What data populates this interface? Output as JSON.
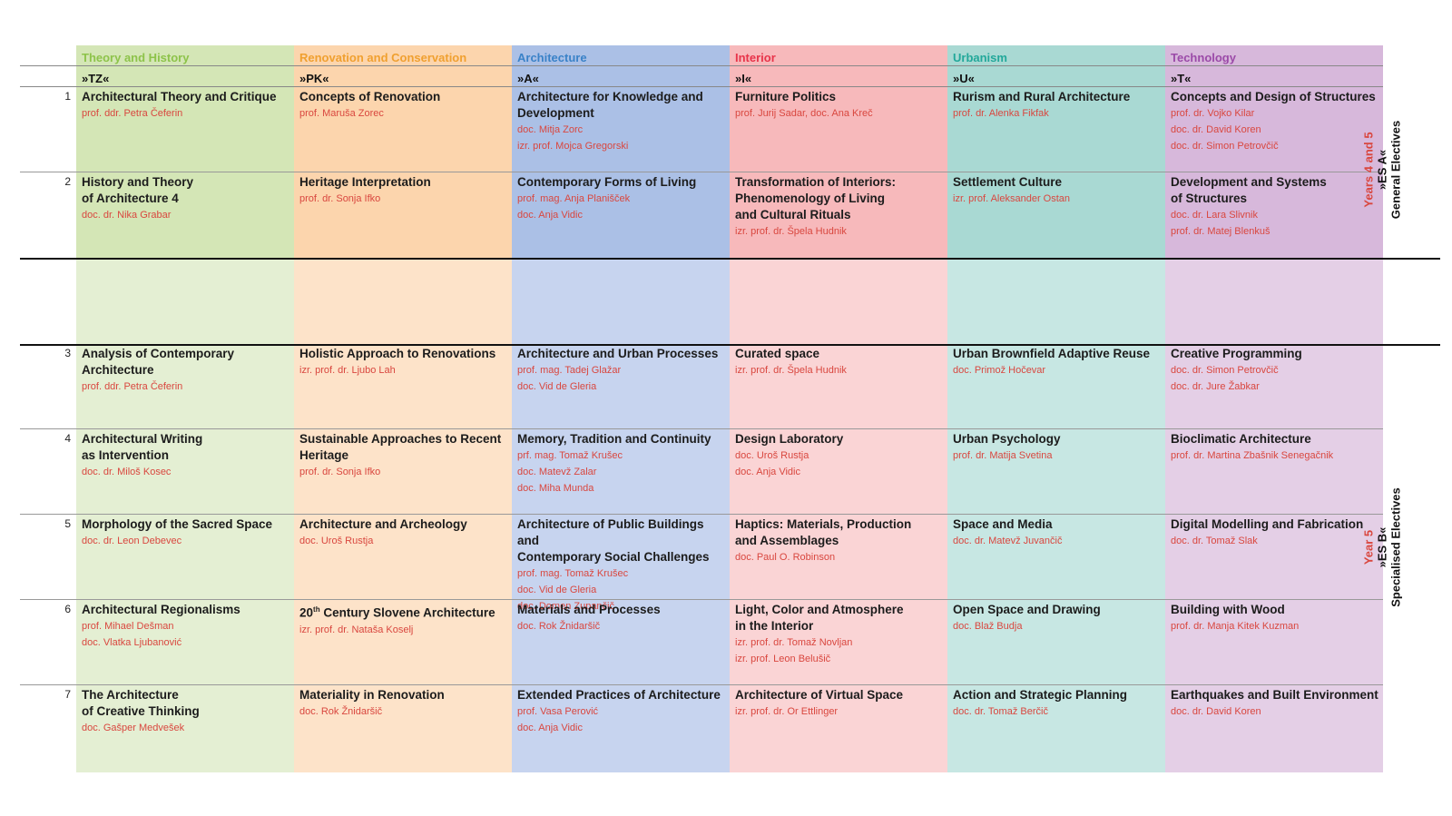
{
  "categories": [
    {
      "name": "Theory and History",
      "code": "»TZ«",
      "header_color": "#8dc34a",
      "dark_bg": "#d4e6b6",
      "light_bg": "#e4efd3",
      "courses": [
        {
          "title": "Architectural Theory and Critique",
          "lecturers": [
            "prof. ddr. Petra Čeferin"
          ]
        },
        {
          "title": "History and Theory\nof Architecture 4",
          "lecturers": [
            "doc. dr. Nika Grabar"
          ]
        },
        {
          "title": "Analysis of Contemporary\nArchitecture",
          "lecturers": [
            "prof. ddr. Petra Čeferin"
          ]
        },
        {
          "title": "Architectural Writing\nas Intervention",
          "lecturers": [
            "doc. dr. Miloš Kosec"
          ]
        },
        {
          "title": "Morphology of the Sacred Space",
          "lecturers": [
            "doc. dr. Leon Debevec"
          ]
        },
        {
          "title": "Architectural Regionalisms",
          "lecturers": [
            "prof. Mihael Dešman",
            "doc. Vlatka Ljubanović"
          ]
        },
        {
          "title": "The Architecture\nof Creative Thinking",
          "lecturers": [
            "doc. Gašper Medvešek"
          ]
        }
      ]
    },
    {
      "name": "Renovation and Conservation",
      "code": "»PK«",
      "header_color": "#f0a030",
      "dark_bg": "#fcd5ad",
      "light_bg": "#fde3c9",
      "courses": [
        {
          "title": "Concepts of Renovation",
          "lecturers": [
            "prof. Maruša Zorec"
          ]
        },
        {
          "title": "Heritage Interpretation",
          "lecturers": [
            "prof. dr. Sonja Ifko"
          ]
        },
        {
          "title": "Holistic Approach to Renovations",
          "lecturers": [
            "izr. prof. dr. Ljubo Lah"
          ]
        },
        {
          "title": "Sustainable Approaches to Recent\nHeritage",
          "lecturers": [
            "prof. dr. Sonja Ifko"
          ]
        },
        {
          "title": "Architecture and Archeology",
          "lecturers": [
            "doc. Uroš Rustja"
          ]
        },
        {
          "title": "20",
          "title_sup": "th",
          "title_rest": " Century Slovene Architecture",
          "lecturers": [
            "izr. prof. dr. Nataša Koselj"
          ]
        },
        {
          "title": "Materiality in Renovation",
          "lecturers": [
            "doc. Rok Žnidaršič"
          ]
        }
      ]
    },
    {
      "name": "Architecture",
      "code": "»A«",
      "header_color": "#3a82c8",
      "dark_bg": "#abc0e6",
      "light_bg": "#c7d4ef",
      "courses": [
        {
          "title": "Architecture for Knowledge and\nDevelopment",
          "lecturers": [
            "doc. Mitja Zorc",
            "izr. prof. Mojca Gregorski"
          ]
        },
        {
          "title": "Contemporary Forms of Living",
          "lecturers": [
            "prof. mag. Anja Planišček",
            "doc. Anja Vidic"
          ]
        },
        {
          "title": "Architecture and Urban Processes",
          "lecturers": [
            "prof. mag. Tadej Glažar",
            "doc. Vid de Gleria"
          ]
        },
        {
          "title": "Memory, Tradition and Continuity",
          "lecturers": [
            "prf. mag. Tomaž Krušec",
            "doc. Matevž Zalar",
            "doc. Miha Munda"
          ]
        },
        {
          "title": "Architecture of Public Buildings and\nContemporary Social Challenges",
          "lecturers": [
            "prof. mag. Tomaž Krušec",
            "doc. Vid de Gleria",
            "doc. Domen Zupančič"
          ]
        },
        {
          "title": "Materials and Processes",
          "lecturers": [
            "doc. Rok Žnidaršič"
          ]
        },
        {
          "title": "Extended Practices of Architecture",
          "lecturers": [
            "prof. Vasa Perović",
            "doc. Anja Vidic"
          ]
        }
      ]
    },
    {
      "name": "Interior",
      "code": "»I«",
      "header_color": "#e8344a",
      "dark_bg": "#f7b9bb",
      "light_bg": "#fad4d5",
      "courses": [
        {
          "title": "Furniture Politics",
          "lecturers": [
            "prof. Jurij Sadar, doc. Ana Kreč"
          ]
        },
        {
          "title": "Transformation of Interiors:\nPhenomenology of Living\nand Cultural Rituals",
          "lecturers": [
            "izr. prof. dr. Špela Hudnik"
          ]
        },
        {
          "title": "Curated space",
          "lecturers": [
            "izr. prof. dr. Špela Hudnik"
          ]
        },
        {
          "title": "Design Laboratory",
          "lecturers": [
            "doc. Uroš Rustja",
            "doc. Anja Vidic"
          ]
        },
        {
          "title": "Haptics: Materials, Production\nand Assemblages",
          "lecturers": [
            "doc. Paul O. Robinson"
          ]
        },
        {
          "title": "Light, Color and Atmosphere\nin the Interior",
          "lecturers": [
            "izr. prof. dr. Tomaž Novljan",
            "izr. prof. Leon Belušič"
          ]
        },
        {
          "title": "Architecture of Virtual Space",
          "lecturers": [
            "izr. prof. dr. Or Ettlinger"
          ]
        }
      ]
    },
    {
      "name": "Urbanism",
      "code": "»U«",
      "header_color": "#22a89a",
      "dark_bg": "#a9d9d3",
      "light_bg": "#c7e7e3",
      "courses": [
        {
          "title": "Rurism and Rural Architecture",
          "lecturers": [
            "prof. dr. Alenka Fikfak"
          ]
        },
        {
          "title": "Settlement Culture",
          "lecturers": [
            "izr. prof. Aleksander Ostan"
          ]
        },
        {
          "title": "Urban Brownfield Adaptive Reuse",
          "lecturers": [
            "doc. Primož Hočevar"
          ]
        },
        {
          "title": "Urban Psychology",
          "lecturers": [
            "prof. dr. Matija Svetina"
          ]
        },
        {
          "title": "Space and Media",
          "lecturers": [
            "doc. dr. Matevž Juvančič"
          ]
        },
        {
          "title": "Open Space and Drawing",
          "lecturers": [
            "doc. Blaž Budja"
          ]
        },
        {
          "title": "Action and Strategic Planning",
          "lecturers": [
            "doc. dr. Tomaž Berčič"
          ]
        }
      ]
    },
    {
      "name": "Technology",
      "code": "»T«",
      "header_color": "#9b4aa8",
      "dark_bg": "#d7b8db",
      "light_bg": "#e4cfe6",
      "courses": [
        {
          "title": "Concepts and Design of Structures",
          "lecturers": [
            "prof. dr. Vojko Kilar",
            "doc. dr. David Koren",
            "doc. dr. Simon Petrovčič"
          ]
        },
        {
          "title": "Development and Systems\nof Structures",
          "lecturers": [
            "doc. dr. Lara Slivnik",
            "prof. dr. Matej Blenkuš"
          ]
        },
        {
          "title": "Creative Programming",
          "lecturers": [
            "doc. dr. Simon Petrovčič",
            "doc. dr. Jure Žabkar"
          ]
        },
        {
          "title": "Bioclimatic Architecture",
          "lecturers": [
            "prof. dr. Martina Zbašnik Senegačnik"
          ]
        },
        {
          "title": "Digital Modelling and Fabrication",
          "lecturers": [
            "doc. dr. Tomaž Slak"
          ]
        },
        {
          "title": "Building with Wood",
          "lecturers": [
            "prof. dr. Manja Kitek Kuzman"
          ]
        },
        {
          "title": "Earthquakes and Built Environment",
          "lecturers": [
            "doc. dr. David Koren"
          ]
        }
      ]
    }
  ],
  "row_numbers": [
    "1",
    "2",
    "3",
    "4",
    "5",
    "6",
    "7"
  ],
  "side_labels": {
    "es_a": {
      "years": "Years 4 and 5",
      "code": "»ES A«",
      "name": "General Electives"
    },
    "es_b": {
      "years": "Year 5",
      "code": "»ES B«",
      "name": "Specialised Electives"
    }
  },
  "colors": {
    "lecturer": "#d9473f",
    "title": "#1c1c1c",
    "line": "#555555"
  }
}
